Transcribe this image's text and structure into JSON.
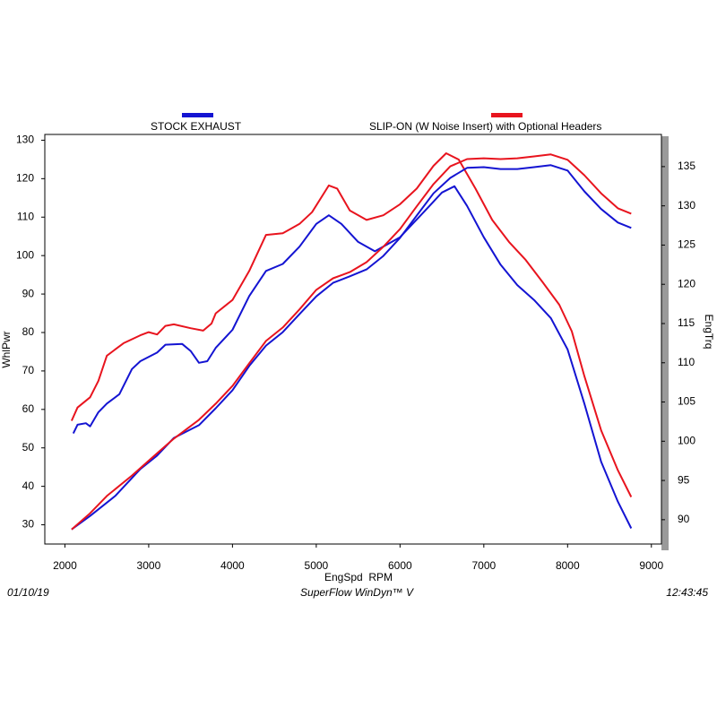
{
  "chart_data": {
    "type": "line",
    "legend": [
      {
        "name": "STOCK EXHAUST",
        "color": "#1414d2"
      },
      {
        "name": "SLIP-ON (W Noise Insert) with Optional Headers",
        "color": "#e8141e"
      }
    ],
    "xlabel": "EngSpd  RPM",
    "ylabel": "WhlPwr",
    "y2label": "EngTrq",
    "footer": {
      "date": "01/10/19",
      "software": "SuperFlow WinDyn™ V",
      "time": "12:43:45"
    },
    "xlim": [
      1760,
      9120
    ],
    "xticks": [
      2000,
      3000,
      4000,
      5000,
      6000,
      7000,
      8000,
      9000
    ],
    "ylim": [
      25,
      131.5
    ],
    "yticks": [
      30,
      40,
      50,
      60,
      70,
      80,
      90,
      100,
      110,
      120,
      130
    ],
    "y2lim": [
      86.9,
      139.1
    ],
    "y2ticks": [
      90,
      95,
      100,
      105,
      110,
      115,
      120,
      125,
      130,
      135
    ],
    "series": [
      {
        "color": "#1414d2",
        "axis": "y2",
        "x": [
          2100,
          2150,
          2250,
          2300,
          2400,
          2500,
          2650,
          2800,
          2900,
          3100,
          3200,
          3400,
          3500,
          3600,
          3700,
          3800,
          4000,
          4200,
          4400,
          4600,
          4800,
          5000,
          5150,
          5300,
          5500,
          5700,
          6000,
          6300,
          6500,
          6650,
          6800,
          7000,
          7200,
          7400,
          7600,
          7800,
          8000,
          8200,
          8400,
          8600,
          8760
        ],
        "values": [
          101.0,
          102.1,
          102.3,
          101.9,
          103.7,
          104.8,
          106.0,
          109.2,
          110.2,
          111.3,
          112.3,
          112.4,
          111.5,
          110.0,
          110.2,
          111.9,
          114.2,
          118.5,
          121.7,
          122.6,
          124.8,
          127.7,
          128.8,
          127.7,
          125.4,
          124.2,
          126.0,
          129.4,
          131.7,
          132.5,
          130.0,
          126.0,
          122.5,
          119.9,
          118.0,
          115.7,
          111.7,
          104.8,
          97.4,
          92.3,
          88.9
        ]
      },
      {
        "color": "#e8141e",
        "axis": "y2",
        "x": [
          2080,
          2150,
          2300,
          2400,
          2500,
          2700,
          2900,
          3000,
          3100,
          3200,
          3300,
          3500,
          3650,
          3750,
          3800,
          4000,
          4200,
          4400,
          4600,
          4800,
          4950,
          5150,
          5250,
          5400,
          5600,
          5800,
          6000,
          6200,
          6400,
          6550,
          6700,
          6900,
          7100,
          7300,
          7500,
          7700,
          7900,
          8050,
          8200,
          8400,
          8600,
          8760
        ],
        "values": [
          102.6,
          104.3,
          105.6,
          107.7,
          110.9,
          112.5,
          113.5,
          113.9,
          113.6,
          114.7,
          114.9,
          114.4,
          114.1,
          115.0,
          116.3,
          118.0,
          121.7,
          126.3,
          126.5,
          127.7,
          129.2,
          132.6,
          132.2,
          129.4,
          128.2,
          128.8,
          130.2,
          132.2,
          135.1,
          136.7,
          135.9,
          132.2,
          128.2,
          125.4,
          123.1,
          120.3,
          117.4,
          114.0,
          108.3,
          101.4,
          96.3,
          92.9
        ]
      },
      {
        "color": "#1414d2",
        "axis": "y",
        "x": [
          2080,
          2300,
          2600,
          2900,
          3100,
          3300,
          3600,
          3800,
          4000,
          4200,
          4400,
          4600,
          4800,
          5000,
          5200,
          5400,
          5600,
          5800,
          6000,
          6200,
          6400,
          6600,
          6800,
          7000,
          7200,
          7400,
          7600,
          7800,
          8000,
          8200,
          8400,
          8600,
          8760
        ],
        "values": [
          28.8,
          32.3,
          37.5,
          44.5,
          48.0,
          52.6,
          55.9,
          60.3,
          65.0,
          71.3,
          76.6,
          80.1,
          84.8,
          89.4,
          92.9,
          94.6,
          96.4,
          99.9,
          104.6,
          110.4,
          116.2,
          120.2,
          122.8,
          123.0,
          122.5,
          122.5,
          123.0,
          123.5,
          122.1,
          116.7,
          112.1,
          108.6,
          107.2
        ]
      },
      {
        "color": "#e8141e",
        "axis": "y",
        "x": [
          2080,
          2300,
          2500,
          2800,
          3100,
          3300,
          3600,
          3800,
          4000,
          4200,
          4400,
          4600,
          4800,
          5000,
          5200,
          5400,
          5600,
          5800,
          6000,
          6200,
          6400,
          6600,
          6800,
          7000,
          7200,
          7400,
          7600,
          7800,
          8000,
          8200,
          8400,
          8600,
          8760
        ],
        "values": [
          28.8,
          33.0,
          37.5,
          42.8,
          48.6,
          52.4,
          57.3,
          61.5,
          66.1,
          72.0,
          77.8,
          81.3,
          86.0,
          91.1,
          94.1,
          95.7,
          98.3,
          102.3,
          106.9,
          112.8,
          118.6,
          123.2,
          125.1,
          125.3,
          125.1,
          125.3,
          125.8,
          126.3,
          124.9,
          120.9,
          116.2,
          112.3,
          110.9
        ]
      }
    ]
  }
}
